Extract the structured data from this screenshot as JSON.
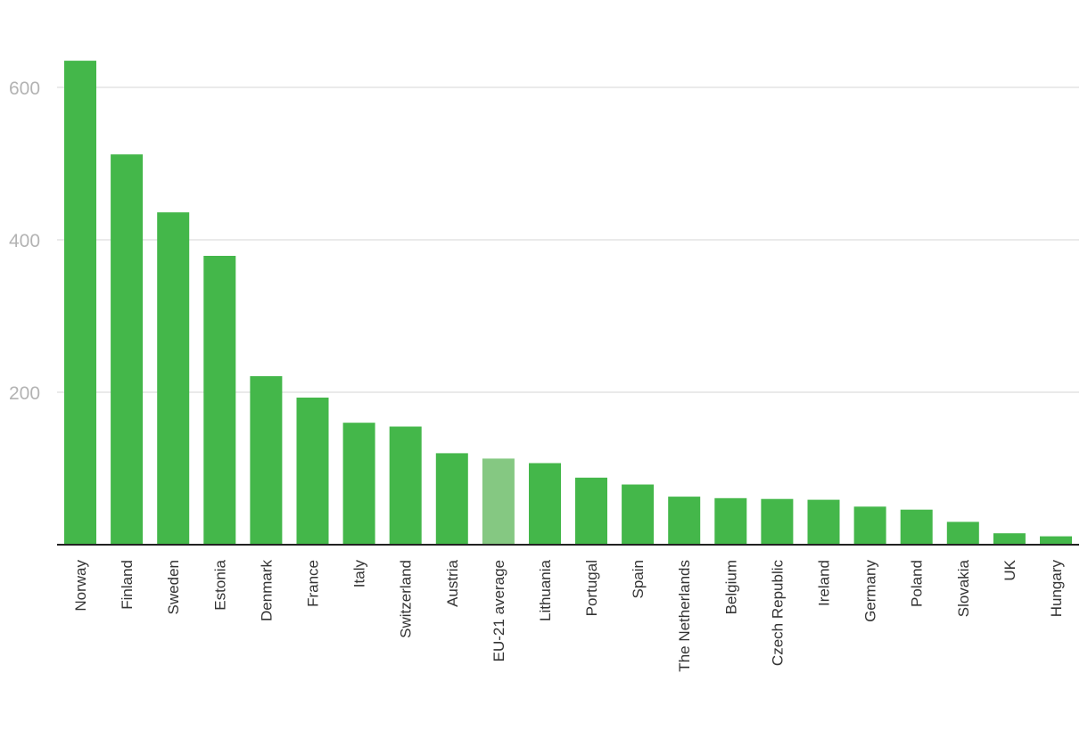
{
  "chart_data": {
    "type": "bar",
    "title": "",
    "xlabel": "",
    "ylabel": "",
    "ylim": [
      0,
      600
    ],
    "yticks": [
      200,
      400,
      600
    ],
    "grid": true,
    "categories": [
      "Norway",
      "Finland",
      "Sweden",
      "Estonia",
      "Denmark",
      "France",
      "Italy",
      "Switzerland",
      "Austria",
      "EU-21 average",
      "Lithuania",
      "Portugal",
      "Spain",
      "The Netherlands",
      "Belgium",
      "Czech Republic",
      "Ireland",
      "Germany",
      "Poland",
      "Slovakia",
      "UK",
      "Hungary"
    ],
    "values": [
      635,
      512,
      436,
      379,
      221,
      193,
      160,
      155,
      120,
      113,
      107,
      88,
      79,
      63,
      61,
      60,
      59,
      50,
      46,
      30,
      15,
      11
    ],
    "highlight": "EU-21 average",
    "colors": {
      "bar": "#44b74a",
      "highlight": "#85c882",
      "grid": "#e3e3e3",
      "axis": "#222222",
      "tick_y": "#b3b3b3",
      "tick_x": "#333333"
    }
  }
}
